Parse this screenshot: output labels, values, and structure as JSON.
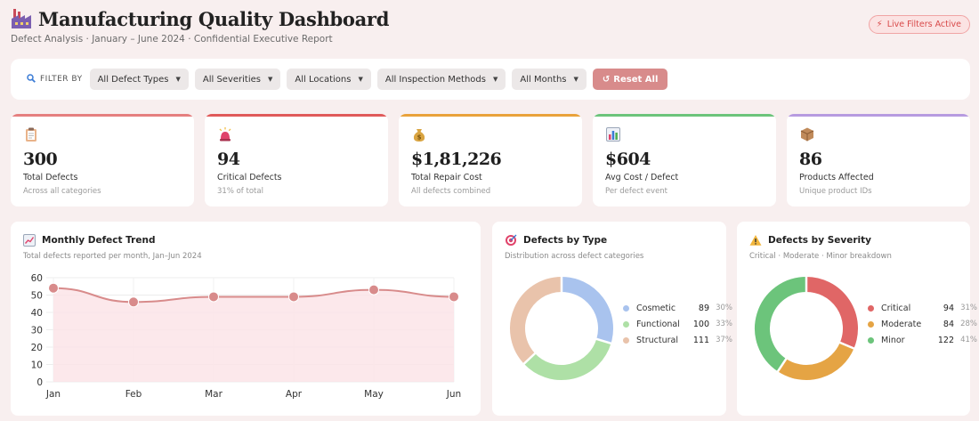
{
  "header": {
    "title": "Manufacturing Quality Dashboard",
    "subtitle": "Defect Analysis · January – June 2024 · Confidential Executive Report",
    "live_pill": "Live Filters Active"
  },
  "filters": {
    "label": "FILTER BY",
    "dropdowns": [
      {
        "label": "All Defect Types"
      },
      {
        "label": "All Severities"
      },
      {
        "label": "All Locations"
      },
      {
        "label": "All Inspection Methods"
      },
      {
        "label": "All Months"
      }
    ],
    "reset_label": "Reset All"
  },
  "kpis": [
    {
      "icon": "clipboard-icon",
      "value": "300",
      "label": "Total Defects",
      "sub": "Across all categories",
      "color": "#e57f7f"
    },
    {
      "icon": "alarm-siren-icon",
      "value": "94",
      "label": "Critical Defects",
      "sub": "31% of total",
      "color": "#e05a5a"
    },
    {
      "icon": "money-bag-icon",
      "value": "$1,81,226",
      "label": "Total Repair Cost",
      "sub": "All defects combined",
      "color": "#e9a23b"
    },
    {
      "icon": "bar-chart-icon",
      "value": "$604",
      "label": "Avg Cost / Defect",
      "sub": "Per defect event",
      "color": "#6cc47b"
    },
    {
      "icon": "package-icon",
      "value": "86",
      "label": "Products Affected",
      "sub": "Unique product IDs",
      "color": "#b79be0"
    }
  ],
  "trend": {
    "title": "Monthly Defect Trend",
    "subtitle": "Total defects reported per month, Jan–Jun 2024",
    "icon": "chart-increasing-icon"
  },
  "by_type": {
    "title": "Defects by Type",
    "subtitle": "Distribution across defect categories",
    "icon": "dart-target-icon"
  },
  "by_severity": {
    "title": "Defects by Severity",
    "subtitle": "Critical · Moderate · Minor breakdown",
    "icon": "warning-icon"
  },
  "chart_data": [
    {
      "type": "line",
      "x": [
        "Jan",
        "Feb",
        "Mar",
        "Apr",
        "May",
        "Jun"
      ],
      "series": [
        {
          "values": [
            54,
            46,
            49,
            49,
            53,
            49
          ]
        }
      ],
      "ylim": [
        0,
        60
      ],
      "yticks": [
        0,
        10,
        20,
        30,
        40,
        50,
        60
      ],
      "grid": true,
      "color": "#d88b8b"
    },
    {
      "type": "pie",
      "donut": true,
      "categories": [
        "Cosmetic",
        "Functional",
        "Structural"
      ],
      "values": [
        89,
        100,
        111
      ],
      "percents": [
        "30%",
        "33%",
        "37%"
      ],
      "colors": [
        "#a9c3ee",
        "#aee0a6",
        "#e9c3ab"
      ]
    },
    {
      "type": "pie",
      "donut": true,
      "categories": [
        "Critical",
        "Moderate",
        "Minor"
      ],
      "values": [
        94,
        84,
        122
      ],
      "percents": [
        "31%",
        "28%",
        "41%"
      ],
      "colors": [
        "#e06666",
        "#e5a444",
        "#6cc47b"
      ]
    }
  ]
}
